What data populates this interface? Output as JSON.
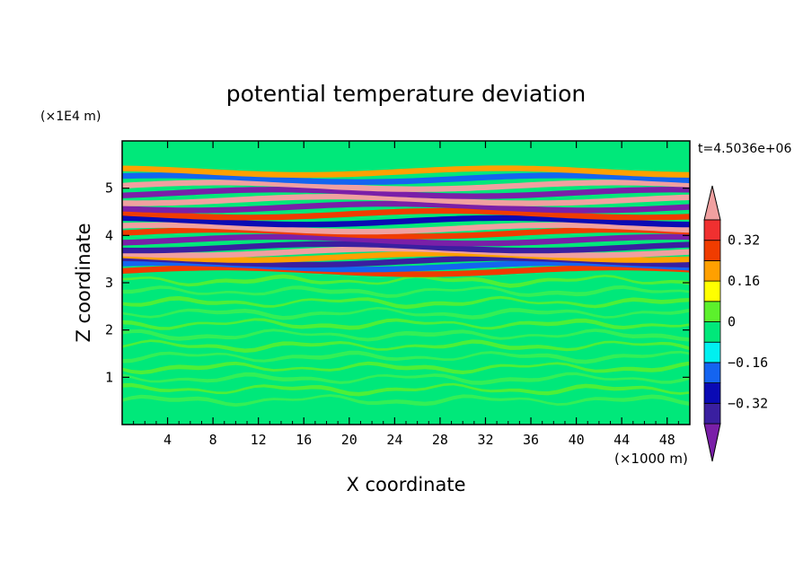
{
  "chart_data": {
    "type": "heatmap",
    "title": "potential temperature deviation",
    "xlabel": "X coordinate",
    "ylabel": "Z coordinate",
    "x_unit": "(×1000 m)",
    "y_unit": "(×1E4 m)",
    "time_label": "t=4.5036e+06",
    "xlim": [
      0,
      50
    ],
    "ylim": [
      0,
      6
    ],
    "x_ticks": [
      "4",
      "8",
      "12",
      "16",
      "20",
      "24",
      "28",
      "32",
      "36",
      "40",
      "44",
      "48"
    ],
    "y_ticks": [
      "1",
      "2",
      "3",
      "4",
      "5"
    ],
    "colorbar": {
      "levels": [
        -0.4,
        -0.32,
        -0.24,
        -0.16,
        -0.08,
        0,
        0.08,
        0.16,
        0.24,
        0.32,
        0.4
      ],
      "colors": [
        "#7a1fa8",
        "#3a1fa0",
        "#0a0ab4",
        "#1464f0",
        "#00f0f0",
        "#00e87a",
        "#5cf02c",
        "#ffff00",
        "#ffa000",
        "#f03c00",
        "#f03030",
        "#f0a0a0"
      ],
      "labels": [
        "0.32",
        "0.16",
        "0",
        "−0.16",
        "−0.32"
      ],
      "extend": "both"
    },
    "stratosphere_bands": [
      {
        "z": 3.25,
        "value": 0.3
      },
      {
        "z": 3.35,
        "value": -0.2
      },
      {
        "z": 3.45,
        "value": -0.4
      },
      {
        "z": 3.55,
        "value": 0.2
      },
      {
        "z": 3.65,
        "value": 0.4
      },
      {
        "z": 3.75,
        "value": -0.35
      },
      {
        "z": 3.9,
        "value": -0.45
      },
      {
        "z": 4.05,
        "value": 0.25
      },
      {
        "z": 4.15,
        "value": 0.45
      },
      {
        "z": 4.3,
        "value": -0.3
      },
      {
        "z": 4.45,
        "value": 0.3
      },
      {
        "z": 4.6,
        "value": -0.45
      },
      {
        "z": 4.75,
        "value": 0.45
      },
      {
        "z": 4.9,
        "value": -0.45
      },
      {
        "z": 5.05,
        "value": 0.45
      },
      {
        "z": 5.2,
        "value": -0.2
      },
      {
        "z": 5.35,
        "value": 0.2
      }
    ]
  }
}
